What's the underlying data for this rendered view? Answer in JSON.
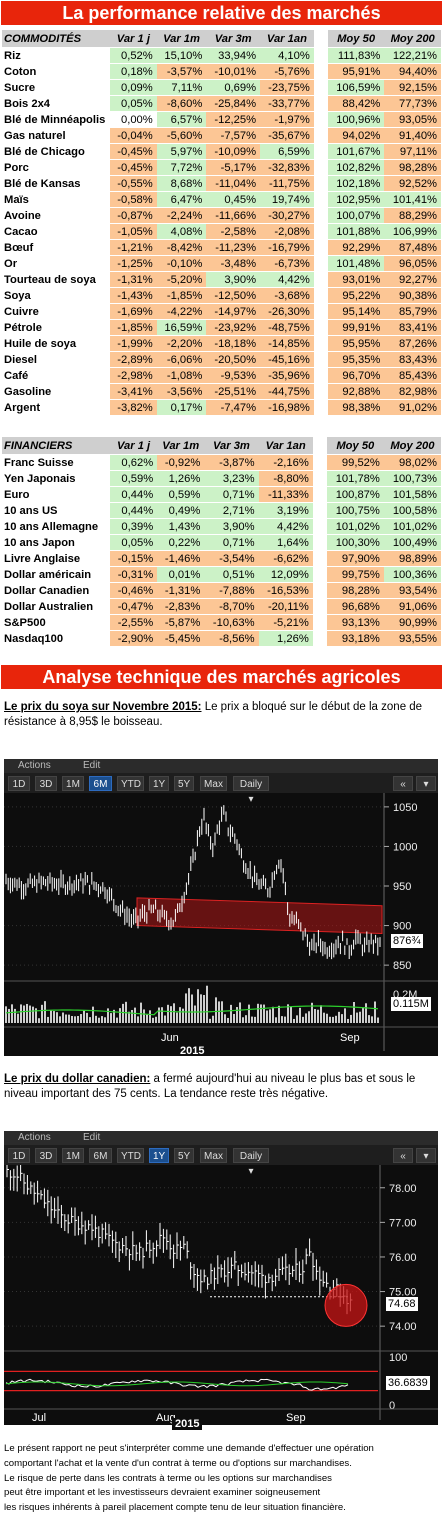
{
  "title_banner": "La performance relative des marchés",
  "commodities": {
    "headers": [
      "COMMODITÉS",
      "Var 1 j",
      "Var 1m",
      "Var 3m",
      "Var 1an",
      "Moy 50",
      "Moy 200"
    ],
    "rows": [
      [
        "Riz",
        "0,52%",
        "15,10%",
        "33,94%",
        "4,10%",
        "111,83%",
        "122,21%"
      ],
      [
        "Coton",
        "0,18%",
        "-3,57%",
        "-10,01%",
        "-5,76%",
        "95,91%",
        "94,40%"
      ],
      [
        "Sucre",
        "0,09%",
        "7,11%",
        "0,69%",
        "-23,75%",
        "106,59%",
        "92,15%"
      ],
      [
        "Bois 2x4",
        "0,05%",
        "-8,60%",
        "-25,84%",
        "-33,77%",
        "88,42%",
        "77,73%"
      ],
      [
        "Blé de Minnéapolis",
        "0,00%",
        "6,57%",
        "-12,25%",
        "-1,97%",
        "100,96%",
        "93,05%"
      ],
      [
        "Gas naturel",
        "-0,04%",
        "-5,60%",
        "-7,57%",
        "-35,67%",
        "94,02%",
        "91,40%"
      ],
      [
        "Blé de Chicago",
        "-0,45%",
        "5,97%",
        "-10,09%",
        "6,59%",
        "101,67%",
        "97,11%"
      ],
      [
        "Porc",
        "-0,45%",
        "7,72%",
        "-5,17%",
        "-32,83%",
        "102,82%",
        "98,28%"
      ],
      [
        "Blé de Kansas",
        "-0,55%",
        "8,68%",
        "-11,04%",
        "-11,75%",
        "102,18%",
        "92,52%"
      ],
      [
        "Maïs",
        "-0,58%",
        "6,47%",
        "0,45%",
        "19,74%",
        "102,95%",
        "101,41%"
      ],
      [
        "Avoine",
        "-0,87%",
        "-2,24%",
        "-11,66%",
        "-30,27%",
        "100,07%",
        "88,29%"
      ],
      [
        "Cacao",
        "-1,05%",
        "4,08%",
        "-2,58%",
        "-2,08%",
        "101,88%",
        "106,99%"
      ],
      [
        "Bœuf",
        "-1,21%",
        "-8,42%",
        "-11,23%",
        "-16,79%",
        "92,29%",
        "87,48%"
      ],
      [
        "Or",
        "-1,25%",
        "-0,10%",
        "-3,48%",
        "-6,73%",
        "101,48%",
        "96,05%"
      ],
      [
        "Tourteau de soya",
        "-1,31%",
        "-5,20%",
        "3,90%",
        "4,42%",
        "93,01%",
        "92,27%"
      ],
      [
        "Soya",
        "-1,43%",
        "-1,85%",
        "-12,50%",
        "-3,68%",
        "95,22%",
        "90,38%"
      ],
      [
        "Cuivre",
        "-1,69%",
        "-4,22%",
        "-14,97%",
        "-26,30%",
        "95,14%",
        "85,79%"
      ],
      [
        "Pétrole",
        "-1,85%",
        "16,59%",
        "-23,92%",
        "-48,75%",
        "99,91%",
        "83,41%"
      ],
      [
        "Huile de soya",
        "-1,99%",
        "-2,20%",
        "-18,18%",
        "-14,85%",
        "95,95%",
        "87,26%"
      ],
      [
        "Diesel",
        "-2,89%",
        "-6,06%",
        "-20,50%",
        "-45,16%",
        "95,35%",
        "83,43%"
      ],
      [
        "Café",
        "-2,98%",
        "-1,08%",
        "-9,53%",
        "-35,96%",
        "96,70%",
        "85,43%"
      ],
      [
        "Gasoline",
        "-3,41%",
        "-3,56%",
        "-25,51%",
        "-44,75%",
        "92,88%",
        "82,98%"
      ],
      [
        "Argent",
        "-3,82%",
        "0,17%",
        "-7,47%",
        "-16,98%",
        "98,38%",
        "91,02%"
      ]
    ]
  },
  "financials": {
    "headers": [
      "FINANCIERS",
      "Var 1 j",
      "Var 1m",
      "Var 3m",
      "Var 1an",
      "Moy 50",
      "Moy 200"
    ],
    "rows": [
      [
        "Franc Suisse",
        "0,62%",
        "-0,92%",
        "-3,87%",
        "-2,16%",
        "99,52%",
        "98,02%"
      ],
      [
        "Yen Japonais",
        "0,59%",
        "1,26%",
        "3,23%",
        "-8,80%",
        "101,78%",
        "100,73%"
      ],
      [
        "Euro",
        "0,44%",
        "0,59%",
        "0,71%",
        "-11,33%",
        "100,87%",
        "101,58%"
      ],
      [
        "10 ans US",
        "0,44%",
        "0,49%",
        "2,71%",
        "3,19%",
        "100,75%",
        "100,58%"
      ],
      [
        "10 ans Allemagne",
        "0,39%",
        "1,43%",
        "3,90%",
        "4,42%",
        "101,02%",
        "101,02%"
      ],
      [
        "10 ans Japon",
        "0,05%",
        "0,22%",
        "0,71%",
        "1,64%",
        "100,30%",
        "100,49%"
      ],
      [
        "Livre Anglaise",
        "-0,15%",
        "-1,46%",
        "-3,54%",
        "-6,62%",
        "97,90%",
        "98,89%"
      ],
      [
        "Dollar américain",
        "-0,31%",
        "0,01%",
        "0,51%",
        "12,09%",
        "99,75%",
        "100,36%"
      ],
      [
        "Dollar Canadien",
        "-0,46%",
        "-1,31%",
        "-7,88%",
        "-16,53%",
        "98,28%",
        "93,54%"
      ],
      [
        "Dollar Australien",
        "-0,47%",
        "-2,83%",
        "-8,70%",
        "-20,11%",
        "96,68%",
        "91,06%"
      ],
      [
        "S&P500",
        "-2,55%",
        "-5,87%",
        "-10,63%",
        "-5,21%",
        "93,13%",
        "90,99%"
      ],
      [
        "Nasdaq100",
        "-2,90%",
        "-5,45%",
        "-8,56%",
        "1,26%",
        "93,18%",
        "93,55%"
      ]
    ]
  },
  "analysis_banner": "Analyse technique des marchés agricoles",
  "soy": {
    "note_title": "Le prix du soya sur Novembre 2015:",
    "note_text": " Le prix a bloqué sur le début de la zone de résistance à 8,95$ le boisseau.",
    "menu": [
      "Actions",
      "Edit"
    ],
    "tabs": [
      "1D",
      "3D",
      "1M",
      "6M",
      "YTD",
      "1Y",
      "5Y",
      "Max",
      "Daily ▾"
    ],
    "selected_tab": "6M",
    "yticks": [
      "1050",
      "1000",
      "950",
      "900",
      "850"
    ],
    "price_tag": "876¾",
    "vol_ticks": [
      "0.2M"
    ],
    "vol_tag": "0.115M",
    "xlabels": [
      "Jun",
      "Sep"
    ],
    "year": "2015"
  },
  "cad": {
    "note_title": "Le prix du dollar canadien:",
    "note_text": " a fermé aujourd'hui au niveau le plus bas et sous le niveau important des 75 cents. La tendance reste très négative.",
    "menu": [
      "Actions",
      "Edit"
    ],
    "tabs": [
      "1D",
      "3D",
      "1M",
      "6M",
      "YTD",
      "1Y",
      "5Y",
      "Max",
      "Daily ▾"
    ],
    "selected_tab": "1Y",
    "yticks": [
      "78.00",
      "77.00",
      "76.00",
      "75.00",
      "74.00"
    ],
    "price_tag": "74.68",
    "ind_ticks": [
      "100",
      "50",
      "0"
    ],
    "ind_tag": "36.6839",
    "xlabels": [
      "Jul",
      "Aug",
      "Sep"
    ],
    "year": "2015"
  },
  "disclaimer": [
    "Le présent rapport ne peut s'interpréter comme une demande d'effectuer une opération",
    "comportant l'achat et la vente d'un contrat à terme ou d'options sur marchandises.",
    "Le risque de perte dans les contrats à terme ou les options sur marchandises",
    "peut être important et les investisseurs devraient examiner soigneusement",
    "les risques inhérents à pareil placement compte tenu de leur situation financière."
  ],
  "colors": {
    "banner": "#e8250b",
    "positive": "#ccf2c7",
    "negative": "#fcc695",
    "tab_selected": "#1b4f8f",
    "zone": "#b01818"
  }
}
